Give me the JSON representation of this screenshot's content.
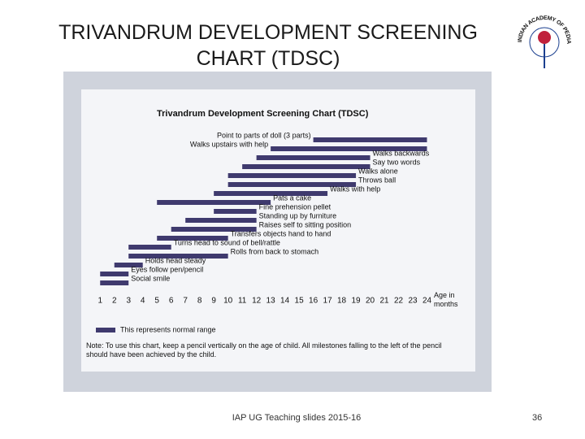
{
  "slide_title": "TRIVANDRUM DEVELOPMENT SCREENING CHART (TDSC)",
  "logo_text": "INDIAN ACADEMY OF PEDIATRICS",
  "footer": "IAP UG Teaching slides 2015-16",
  "page_number": "36",
  "chart_data": {
    "type": "range-bar",
    "title": "Trivandrum Development Screening Chart (TDSC)",
    "x_label": "Age in months",
    "color": "#3f3a6e",
    "xlim": [
      0.7,
      25
    ],
    "xticks": [
      1,
      2,
      3,
      4,
      5,
      6,
      7,
      8,
      9,
      10,
      11,
      12,
      13,
      14,
      15,
      16,
      17,
      18,
      19,
      20,
      21,
      22,
      23,
      24
    ],
    "milestones": [
      {
        "label": "Point to parts of doll (3 parts)",
        "start": 16,
        "end": 24
      },
      {
        "label": "Walks upstairs with help",
        "start": 13,
        "end": 24
      },
      {
        "label": "Walks backwards",
        "start": 12,
        "end": 20
      },
      {
        "label": "Say two words",
        "start": 11,
        "end": 20
      },
      {
        "label": "Walks alone",
        "start": 10,
        "end": 19
      },
      {
        "label": "Throws ball",
        "start": 10,
        "end": 19
      },
      {
        "label": "Walks with help",
        "start": 9,
        "end": 17
      },
      {
        "label": "Pats a cake",
        "start": 5,
        "end": 13
      },
      {
        "label": "Fine prehension pellet",
        "start": 9,
        "end": 12
      },
      {
        "label": "Standing up by furniture",
        "start": 7,
        "end": 12
      },
      {
        "label": "Raises self to sitting position",
        "start": 6,
        "end": 12
      },
      {
        "label": "Transfers objects hand to hand",
        "start": 5,
        "end": 10
      },
      {
        "label": "Turns head to sound of bell/rattle",
        "start": 3,
        "end": 6
      },
      {
        "label": "Rolls from back to stomach",
        "start": 3,
        "end": 10
      },
      {
        "label": "Holds head steady",
        "start": 2,
        "end": 4
      },
      {
        "label": "Eyes follow pen/pencil",
        "start": 1,
        "end": 3
      },
      {
        "label": "Social smile",
        "start": 1,
        "end": 3
      }
    ],
    "legend": "This represents normal range",
    "note": "Note: To use this chart, keep a pencil vertically on the age of child. All milestones falling to the left of the pencil should have been achieved by the child."
  }
}
